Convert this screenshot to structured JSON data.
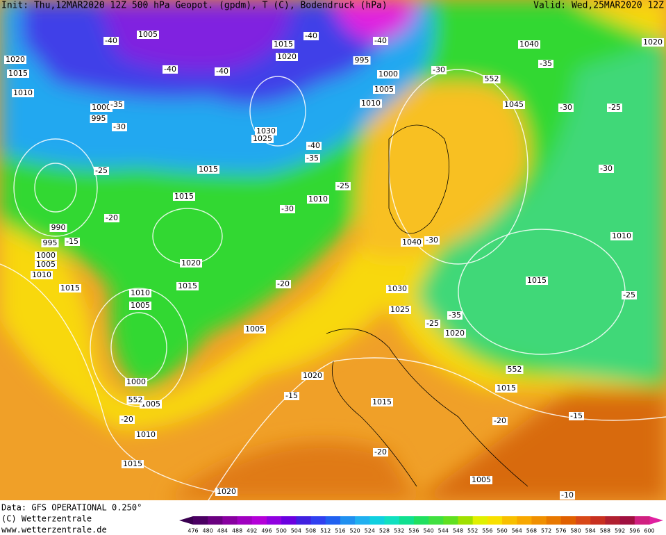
{
  "header": {
    "title": "Init: Thu,12MAR2020 12Z  500 hPa Geopot. (gpdm), T (C), Bodendruck (hPa)",
    "valid": "Valid: Wed,25MAR2020 12Z"
  },
  "footer": {
    "source": "Data: GFS OPERATIONAL 0.250°",
    "copyright": "(C) Wetterzentrale",
    "url": "www.wetterzentrale.de"
  },
  "map_labels": [
    "1005",
    "1015",
    "1020",
    "1020",
    "1015",
    "1010",
    "995",
    "1000",
    "1005",
    "1010",
    "1040",
    "1020",
    "1045",
    "1000",
    "995",
    "1030",
    "1025",
    "1015",
    "1015",
    "1010",
    "990",
    "995",
    "1000",
    "1005",
    "1010",
    "1015",
    "1020",
    "1015",
    "1040",
    "1030",
    "1025",
    "1010",
    "1005",
    "1005",
    "1020",
    "1010",
    "1015",
    "1000",
    "1005",
    "1020",
    "1015",
    "1015",
    "1010",
    "1015",
    "1005",
    "1020",
    "-40",
    "-40",
    "-40",
    "-40",
    "-40",
    "-35",
    "-30",
    "-25",
    "-20",
    "-15",
    "-40",
    "-35",
    "-25",
    "-30",
    "-30",
    "-35",
    "-30",
    "-25",
    "-30",
    "-30",
    "-20",
    "-35",
    "-25",
    "-25",
    "-15",
    "-20",
    "-20",
    "-15",
    "-20",
    "-10",
    "552",
    "552",
    "552"
  ],
  "colorbar_ticks": [
    476,
    480,
    484,
    488,
    492,
    496,
    500,
    504,
    508,
    512,
    516,
    520,
    524,
    528,
    532,
    536,
    540,
    544,
    548,
    552,
    556,
    560,
    564,
    568,
    572,
    576,
    580,
    584,
    588,
    592,
    596,
    600
  ]
}
